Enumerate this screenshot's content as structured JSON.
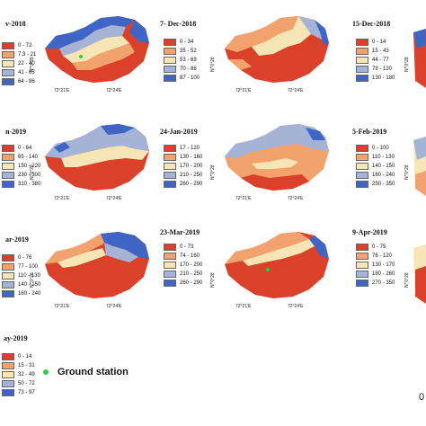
{
  "ground_station_label": "Ground station",
  "corner_label": "0",
  "panels": [
    {
      "date": "v-2018",
      "lat": "N″′0°28",
      "lon1": "72°21′E",
      "lon2": "72°24′E",
      "legend": [
        "0 - 72",
        "7.3 - 21",
        "22 - 40",
        "41 - 63",
        "64 - 86"
      ]
    },
    {
      "date": "7- Dec-2018",
      "lat": "N″′0°28",
      "lon1": "72°21′E",
      "lon2": "72°24′E",
      "legend": [
        "0 - 34",
        "35 - 52",
        "53 - 69",
        "70 - 86",
        "87 - 100"
      ]
    },
    {
      "date": "15-Dec-2018",
      "lat": "N″′0°28",
      "lon1": "",
      "lon2": "",
      "legend": [
        "0 - 14",
        "15 - 43",
        "44 - 77",
        "78 - 120",
        "130 - 180"
      ]
    },
    {
      "date": "n-2019",
      "lat": "N″′0°28",
      "lon1": "72°21′E",
      "lon2": "72°24′E",
      "legend": [
        "0 - 64",
        "65 - 140",
        "150 - 220",
        "230 - 300",
        "310 - 380"
      ]
    },
    {
      "date": "24-Jan-2019",
      "lat": "N″′0°28",
      "lon1": "72°21′E",
      "lon2": "72°24′E",
      "legend": [
        "17 - 120",
        "130 - 160",
        "170 - 200",
        "210 - 250",
        "260 - 290"
      ]
    },
    {
      "date": "5-Feb-2019",
      "lat": "N″′0°28",
      "lon1": "",
      "lon2": "",
      "legend": [
        "0 - 100",
        "110 - 130",
        "140 - 150",
        "160 - 240",
        "250 - 350"
      ]
    },
    {
      "date": "ar-2019",
      "lat": "N″′0°28",
      "lon1": "72°21′E",
      "lon2": "72°24′E",
      "legend": [
        "0 - 76",
        "77 - 100",
        "110 - 130",
        "140 - 150",
        "160 - 240"
      ]
    },
    {
      "date": "23-Mar-2019",
      "lat": "N″′0°28",
      "lon1": "72°21′E",
      "lon2": "72°24′E",
      "legend": [
        "0 - 73",
        "74 - 160",
        "170 - 200",
        "210 - 250",
        "260 - 290"
      ]
    },
    {
      "date": "9-Apr-2019",
      "lat": "N″′0°28",
      "lon1": "",
      "lon2": "",
      "legend": [
        "0 - 75",
        "76 - 120",
        "130 - 170",
        "180 - 260",
        "270 - 350"
      ]
    },
    {
      "date": "ay-2019",
      "lat": "",
      "lon1": "",
      "lon2": "",
      "legend": [
        "0 - 14",
        "15 - 31",
        "32 - 49",
        "50 - 72",
        "73 - 97"
      ]
    }
  ],
  "colors": {
    "class1": "#d9412b",
    "class2": "#f2a36d",
    "class3": "#f7e6b5",
    "class4": "#a5b3d6",
    "class5": "#3f66c5",
    "ground_station": "#2ecc40"
  }
}
